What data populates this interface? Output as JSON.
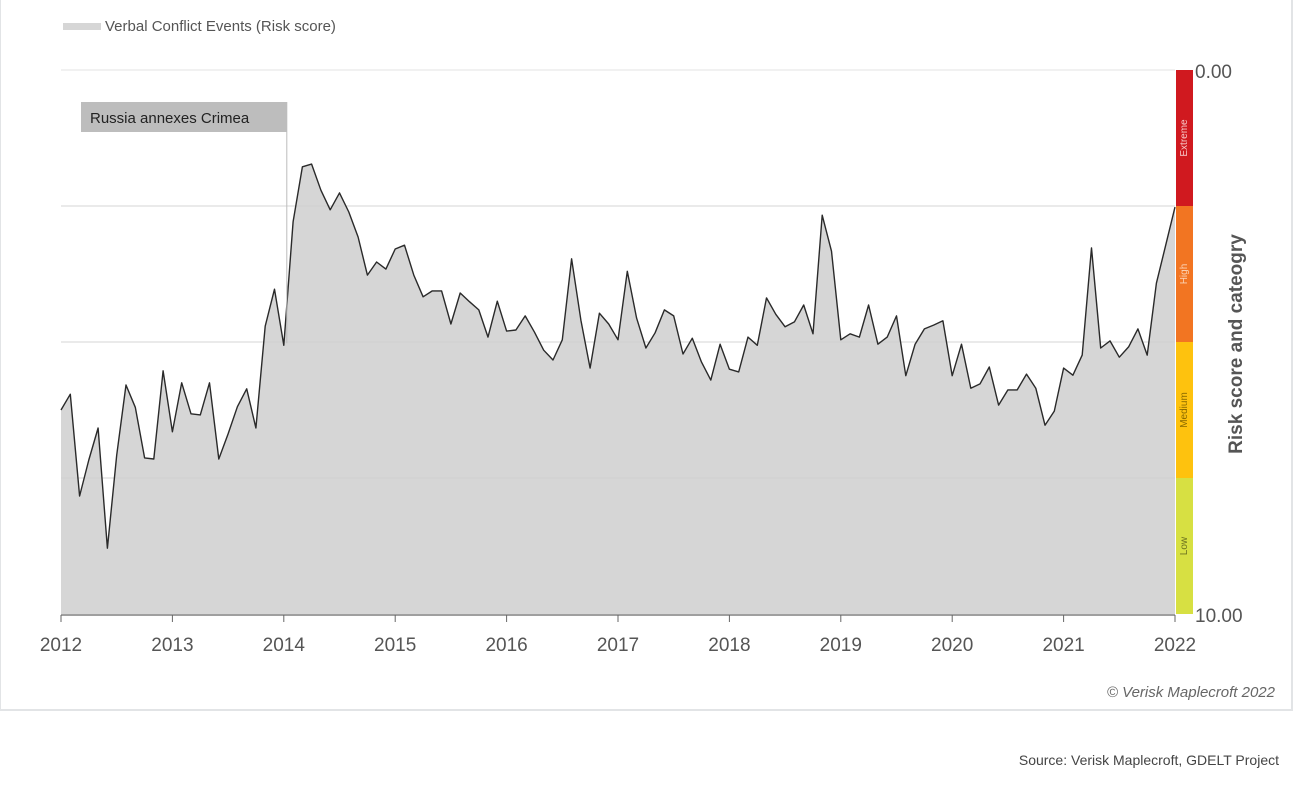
{
  "legend": {
    "label": "Verbal Conflict Events (Risk score)",
    "swatch_color": "#d6d6d6"
  },
  "annotation": {
    "label": "Russia annexes Crimea",
    "x_date": "2014-01"
  },
  "y_axis": {
    "title": "Risk score and cateogry",
    "top_label": "0.00",
    "bottom_label": "10.00"
  },
  "x_axis": {
    "ticks": [
      "2012",
      "2013",
      "2014",
      "2015",
      "2016",
      "2017",
      "2018",
      "2019",
      "2020",
      "2021",
      "2022"
    ]
  },
  "categories": [
    {
      "label": "Extreme",
      "from": 0.0,
      "to": 2.5,
      "color": "#d0191f",
      "text_color": "#f7c7c7"
    },
    {
      "label": "High",
      "from": 2.5,
      "to": 5.0,
      "color": "#f27522",
      "text_color": "#fbd3b6"
    },
    {
      "label": "Medium",
      "from": 5.0,
      "to": 7.5,
      "color": "#fec20e",
      "text_color": "#8a6a00"
    },
    {
      "label": "Low",
      "from": 7.5,
      "to": 10.0,
      "color": "#d7e042",
      "text_color": "#6d7320"
    }
  ],
  "copyright": "© Verisk Maplecroft 2022",
  "source": "Source: Verisk Maplecroft, GDELT Project",
  "chart_data": {
    "type": "area",
    "title": "",
    "xlabel": "",
    "ylabel": "Risk score and cateogry",
    "ylim": [
      10,
      0
    ],
    "y_inverted": true,
    "grid": true,
    "legend_position": "top-left",
    "x_start": "2012-01",
    "x_frequency": "monthly",
    "series": [
      {
        "name": "Verbal Conflict Events (Risk score)",
        "values": [
          6.25,
          5.96,
          7.83,
          7.17,
          6.58,
          8.79,
          7.08,
          5.79,
          6.2,
          7.13,
          7.15,
          5.53,
          6.65,
          5.75,
          6.32,
          6.34,
          5.75,
          7.15,
          6.69,
          6.19,
          5.86,
          6.58,
          4.71,
          4.03,
          5.06,
          2.79,
          1.78,
          1.73,
          2.21,
          2.57,
          2.26,
          2.61,
          3.07,
          3.77,
          3.53,
          3.66,
          3.29,
          3.22,
          3.77,
          4.17,
          4.06,
          4.06,
          4.67,
          4.1,
          4.26,
          4.41,
          4.91,
          4.25,
          4.8,
          4.78,
          4.52,
          4.82,
          5.15,
          5.33,
          4.96,
          3.47,
          4.6,
          5.48,
          4.47,
          4.67,
          4.96,
          3.7,
          4.56,
          5.11,
          4.83,
          4.41,
          4.52,
          5.22,
          4.93,
          5.37,
          5.7,
          5.04,
          5.5,
          5.55,
          4.91,
          5.06,
          4.19,
          4.49,
          4.72,
          4.63,
          4.32,
          4.85,
          2.67,
          3.33,
          4.96,
          4.85,
          4.91,
          4.32,
          5.04,
          4.91,
          4.52,
          5.62,
          5.04,
          4.76,
          4.69,
          4.61,
          5.62,
          5.04,
          5.85,
          5.77,
          5.46,
          6.16,
          5.88,
          5.88,
          5.59,
          5.85,
          6.53,
          6.27,
          5.48,
          5.61,
          5.24,
          3.27,
          5.11,
          4.98,
          5.28,
          5.09,
          4.76,
          5.24,
          3.92,
          3.22,
          2.52
        ]
      }
    ],
    "annotations": [
      {
        "text": "Russia annexes Crimea",
        "x": "2014-01"
      }
    ],
    "bands": [
      {
        "label": "Extreme",
        "range": [
          0,
          2.5
        ]
      },
      {
        "label": "High",
        "range": [
          2.5,
          5.0
        ]
      },
      {
        "label": "Medium",
        "range": [
          5.0,
          7.5
        ]
      },
      {
        "label": "Low",
        "range": [
          7.5,
          10.0
        ]
      }
    ]
  }
}
